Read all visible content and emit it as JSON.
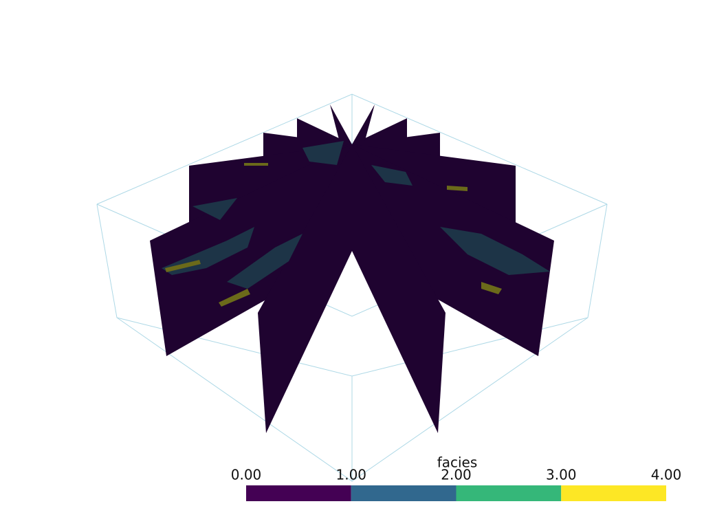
{
  "scalar_bar": {
    "title": "facies",
    "range": [
      0,
      4
    ],
    "ticks": [
      {
        "value": 0,
        "label": "0.00"
      },
      {
        "value": 1,
        "label": "1.00"
      },
      {
        "value": 2,
        "label": "2.00"
      },
      {
        "value": 3,
        "label": "3.00"
      },
      {
        "value": 4,
        "label": "4.00"
      }
    ],
    "colors": [
      "#440154",
      "#31688e",
      "#35b779",
      "#fde725"
    ]
  }
}
